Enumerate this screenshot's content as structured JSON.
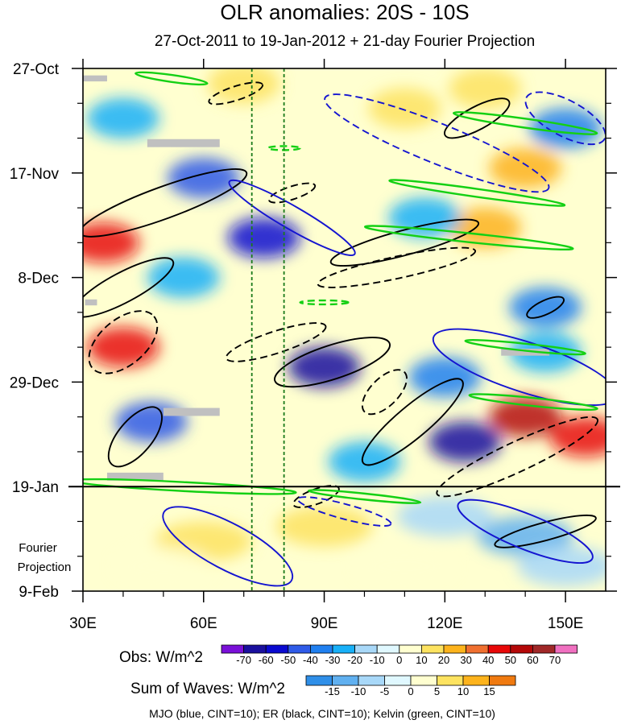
{
  "chart_data": {
    "type": "heatmap",
    "title": "OLR anomalies: 20S - 10S",
    "subtitle": "27-Oct-2011 to 19-Jan-2012 + 21-day Fourier Projection",
    "x_axis": {
      "range": [
        30,
        160
      ],
      "ticks": [
        {
          "value": 30,
          "label": "30E"
        },
        {
          "value": 60,
          "label": "60E"
        },
        {
          "value": 90,
          "label": "90E"
        },
        {
          "value": 120,
          "label": "120E"
        },
        {
          "value": 150,
          "label": "150E"
        }
      ]
    },
    "y_axis": {
      "range_days": [
        0,
        105
      ],
      "ticks": [
        {
          "day": 0,
          "label": "27-Oct"
        },
        {
          "day": 21,
          "label": "17-Nov"
        },
        {
          "day": 42,
          "label": "8-Dec"
        },
        {
          "day": 63,
          "label": "29-Dec"
        },
        {
          "day": 84,
          "label": "19-Jan"
        },
        {
          "day": 105,
          "label": "9-Feb"
        }
      ]
    },
    "projection_start_day": 84,
    "projection_label": [
      "Fourier",
      "Projection"
    ],
    "reference_longitudes": [
      72,
      80
    ],
    "legend_obs": {
      "label": "Obs: W/m^2",
      "levels": [
        -70,
        -60,
        -50,
        -40,
        -30,
        -20,
        -10,
        0,
        10,
        20,
        30,
        40,
        50,
        60,
        70
      ],
      "colors": [
        "#7a10d8",
        "#1a109e",
        "#0a0ad0",
        "#2f5be8",
        "#2080f0",
        "#18b0f8",
        "#a8d8f8",
        "#e0f8ff",
        "#ffffd0",
        "#fde360",
        "#fdb31c",
        "#f07030",
        "#e80808",
        "#b40808",
        "#a02828",
        "#f070c0"
      ]
    },
    "legend_waves": {
      "label": "Sum of Waves: W/m^2",
      "levels": [
        -15,
        -10,
        -5,
        0,
        5,
        10,
        15
      ],
      "colors": [
        "#2f8fe8",
        "#60b0f0",
        "#a8d8f8",
        "#e0f8ff",
        "#ffffd0",
        "#fde360",
        "#fdb31c",
        "#f07a10"
      ]
    },
    "footnote": "MJO (blue, CINT=10); ER (black, CINT=10); Kelvin (green, CINT=10)",
    "missing_value_color": "#c0c0c0",
    "obs_anomalies": [
      {
        "lon": 70,
        "day": 3,
        "value": 12
      },
      {
        "lon": 130,
        "day": 4,
        "value": 18
      },
      {
        "lon": 110,
        "day": 8,
        "value": 14
      },
      {
        "lon": 40,
        "day": 10,
        "value": -28
      },
      {
        "lon": 150,
        "day": 12,
        "value": -35
      },
      {
        "lon": 60,
        "day": 22,
        "value": -45
      },
      {
        "lon": 140,
        "day": 20,
        "value": 22
      },
      {
        "lon": 35,
        "day": 35,
        "value": 45
      },
      {
        "lon": 75,
        "day": 34,
        "value": -55
      },
      {
        "lon": 130,
        "day": 32,
        "value": 28
      },
      {
        "lon": 115,
        "day": 30,
        "value": -30
      },
      {
        "lon": 55,
        "day": 42,
        "value": -22
      },
      {
        "lon": 145,
        "day": 48,
        "value": -40
      },
      {
        "lon": 40,
        "day": 56,
        "value": 42
      },
      {
        "lon": 90,
        "day": 60,
        "value": -70
      },
      {
        "lon": 120,
        "day": 62,
        "value": -35
      },
      {
        "lon": 140,
        "day": 70,
        "value": 55
      },
      {
        "lon": 125,
        "day": 75,
        "value": -65
      },
      {
        "lon": 47,
        "day": 71,
        "value": -48
      },
      {
        "lon": 100,
        "day": 79,
        "value": -25
      },
      {
        "lon": 145,
        "day": 57,
        "value": -30
      },
      {
        "lon": 155,
        "day": 74,
        "value": 45
      }
    ],
    "wave_anomalies": [
      {
        "lon": 140,
        "day": 94,
        "value": -15
      },
      {
        "lon": 120,
        "day": 90,
        "value": -8
      },
      {
        "lon": 90,
        "day": 92,
        "value": 8
      },
      {
        "lon": 60,
        "day": 95,
        "value": 5
      },
      {
        "lon": 50,
        "day": 100,
        "value": 3
      },
      {
        "lon": 110,
        "day": 100,
        "value": 4
      },
      {
        "lon": 150,
        "day": 100,
        "value": -10
      }
    ],
    "contours": [
      {
        "wave": "ER",
        "color": "#000000",
        "sign": "positive",
        "lon": 50,
        "day": 27,
        "rx_lon": 22,
        "ry_day": 3.2,
        "angle": -20
      },
      {
        "wave": "ER",
        "color": "#000000",
        "sign": "positive",
        "lon": 40,
        "day": 44,
        "rx_lon": 14,
        "ry_day": 3.0,
        "angle": -28
      },
      {
        "wave": "ER",
        "color": "#000000",
        "sign": "positive",
        "lon": 92,
        "day": 59,
        "rx_lon": 15,
        "ry_day": 3.4,
        "angle": -18
      },
      {
        "wave": "ER",
        "color": "#000000",
        "sign": "positive",
        "lon": 112,
        "day": 71,
        "rx_lon": 16,
        "ry_day": 3.2,
        "angle": -40
      },
      {
        "wave": "ER",
        "color": "#000000",
        "sign": "positive",
        "lon": 128,
        "day": 10,
        "rx_lon": 9,
        "ry_day": 2.3,
        "angle": -28
      },
      {
        "wave": "ER",
        "color": "#000000",
        "sign": "positive",
        "lon": 110,
        "day": 35,
        "rx_lon": 19,
        "ry_day": 2.5,
        "angle": -15
      },
      {
        "wave": "ER",
        "color": "#000000",
        "sign": "positive",
        "lon": 43,
        "day": 74,
        "rx_lon": 9,
        "ry_day": 3.4,
        "angle": -50
      },
      {
        "wave": "ER",
        "color": "#000000",
        "sign": "positive",
        "lon": 145,
        "day": 93,
        "rx_lon": 13,
        "ry_day": 1.8,
        "angle": -15
      },
      {
        "wave": "ER",
        "color": "#000000",
        "sign": "positive",
        "lon": 145,
        "day": 48,
        "rx_lon": 5,
        "ry_day": 1.4,
        "angle": -25
      },
      {
        "wave": "ER",
        "color": "#000000",
        "sign": "negative",
        "lon": 68,
        "day": 5,
        "rx_lon": 7,
        "ry_day": 1.4,
        "angle": -18
      },
      {
        "wave": "ER",
        "color": "#000000",
        "sign": "negative",
        "lon": 82,
        "day": 25,
        "rx_lon": 6,
        "ry_day": 1.3,
        "angle": -18
      },
      {
        "wave": "ER",
        "color": "#000000",
        "sign": "negative",
        "lon": 108,
        "day": 40,
        "rx_lon": 20,
        "ry_day": 2.2,
        "angle": -12
      },
      {
        "wave": "ER",
        "color": "#000000",
        "sign": "negative",
        "lon": 40,
        "day": 55,
        "rx_lon": 10,
        "ry_day": 4.6,
        "angle": -40
      },
      {
        "wave": "ER",
        "color": "#000000",
        "sign": "negative",
        "lon": 78,
        "day": 55,
        "rx_lon": 13,
        "ry_day": 2.2,
        "angle": -18
      },
      {
        "wave": "ER",
        "color": "#000000",
        "sign": "negative",
        "lon": 105,
        "day": 65,
        "rx_lon": 7,
        "ry_day": 2.8,
        "angle": -45
      },
      {
        "wave": "ER",
        "color": "#000000",
        "sign": "negative",
        "lon": 138,
        "day": 78,
        "rx_lon": 22,
        "ry_day": 3.0,
        "angle": -25
      },
      {
        "wave": "ER",
        "color": "#000000",
        "sign": "negative",
        "lon": 88,
        "day": 86,
        "rx_lon": 6,
        "ry_day": 1.5,
        "angle": -20
      },
      {
        "wave": "MJO",
        "color": "#1414d0",
        "sign": "positive",
        "lon": 82,
        "day": 30,
        "rx_lon": 18,
        "ry_day": 2.3,
        "angle": 30
      },
      {
        "wave": "MJO",
        "color": "#1414d0",
        "sign": "positive",
        "lon": 140,
        "day": 60,
        "rx_lon": 24,
        "ry_day": 5.0,
        "angle": 18
      },
      {
        "wave": "MJO",
        "color": "#1414d0",
        "sign": "positive",
        "lon": 66,
        "day": 96,
        "rx_lon": 18,
        "ry_day": 4.6,
        "angle": 28
      },
      {
        "wave": "MJO",
        "color": "#1414d0",
        "sign": "positive",
        "lon": 140,
        "day": 93,
        "rx_lon": 18,
        "ry_day": 3.5,
        "angle": 22
      },
      {
        "wave": "MJO",
        "color": "#1414d0",
        "sign": "negative",
        "lon": 118,
        "day": 15,
        "rx_lon": 30,
        "ry_day": 4.0,
        "angle": 22
      },
      {
        "wave": "MJO",
        "color": "#1414d0",
        "sign": "negative",
        "lon": 150,
        "day": 10,
        "rx_lon": 11,
        "ry_day": 3.6,
        "angle": 28
      },
      {
        "wave": "MJO",
        "color": "#1414d0",
        "sign": "negative",
        "lon": 95,
        "day": 89,
        "rx_lon": 12,
        "ry_day": 1.5,
        "angle": 15
      },
      {
        "wave": "Kelvin",
        "color": "#14d014",
        "sign": "positive",
        "lon": 52,
        "day": 2,
        "rx_lon": 9,
        "ry_day": 0.7,
        "angle": 8
      },
      {
        "wave": "Kelvin",
        "color": "#14d014",
        "sign": "positive",
        "lon": 140,
        "day": 11,
        "rx_lon": 18,
        "ry_day": 0.9,
        "angle": 8
      },
      {
        "wave": "Kelvin",
        "color": "#14d014",
        "sign": "positive",
        "lon": 128,
        "day": 25,
        "rx_lon": 22,
        "ry_day": 0.8,
        "angle": 8
      },
      {
        "wave": "Kelvin",
        "color": "#14d014",
        "sign": "positive",
        "lon": 126,
        "day": 34,
        "rx_lon": 26,
        "ry_day": 0.9,
        "angle": 6
      },
      {
        "wave": "Kelvin",
        "color": "#14d014",
        "sign": "positive",
        "lon": 140,
        "day": 56,
        "rx_lon": 15,
        "ry_day": 0.7,
        "angle": 6
      },
      {
        "wave": "Kelvin",
        "color": "#14d014",
        "sign": "positive",
        "lon": 142,
        "day": 67,
        "rx_lon": 16,
        "ry_day": 0.8,
        "angle": 6
      },
      {
        "wave": "Kelvin",
        "color": "#14d014",
        "sign": "positive",
        "lon": 55,
        "day": 84,
        "rx_lon": 28,
        "ry_day": 0.9,
        "angle": 3
      },
      {
        "wave": "Kelvin",
        "color": "#14d014",
        "sign": "positive",
        "lon": 100,
        "day": 86,
        "rx_lon": 14,
        "ry_day": 0.6,
        "angle": 6
      },
      {
        "wave": "Kelvin",
        "color": "#14d014",
        "sign": "negative",
        "lon": 90,
        "day": 47,
        "rx_lon": 6,
        "ry_day": 0.4,
        "angle": 0
      },
      {
        "wave": "Kelvin",
        "color": "#14d014",
        "sign": "negative",
        "lon": 80,
        "day": 16,
        "rx_lon": 4,
        "ry_day": 0.4,
        "angle": 0
      }
    ],
    "missing_patches": [
      {
        "lon": 55,
        "day": 15,
        "w_lon": 18,
        "h_day": 1.6
      },
      {
        "lon": 57,
        "day": 69,
        "w_lon": 14,
        "h_day": 1.6
      },
      {
        "lon": 43,
        "day": 82,
        "w_lon": 14,
        "h_day": 1.6
      },
      {
        "lon": 140,
        "day": 57,
        "w_lon": 12,
        "h_day": 1.4
      },
      {
        "lon": 33,
        "day": 2,
        "w_lon": 6,
        "h_day": 1.2
      },
      {
        "lon": 32,
        "day": 47,
        "w_lon": 3,
        "h_day": 1.2
      }
    ]
  }
}
